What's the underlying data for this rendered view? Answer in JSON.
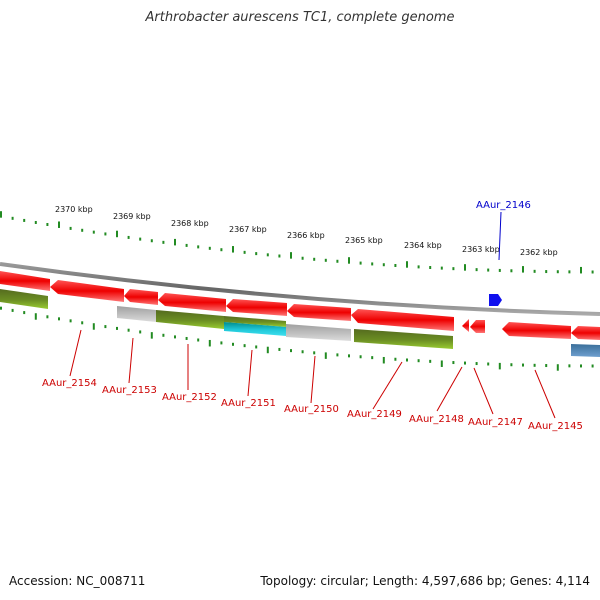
{
  "title": "Arthrobacter aurescens TC1, complete genome",
  "footer": {
    "accession": "Accession: NC_008711",
    "summary": "Topology: circular; Length: 4,597,686 bp; Genes: 4,114"
  },
  "colors": {
    "backbone": "#888888",
    "tick": "#228B22",
    "label_red": "#cc0000",
    "label_blue": "#0000cc",
    "red": "#ff1a1a",
    "green": "#6b8e23",
    "cyan": "#20c8d8",
    "grey": "#bdbdbd",
    "blue": "#1010ee",
    "steel": "#4682b4"
  },
  "scale_labels": [
    "2370 kbp",
    "2369 kbp",
    "2368 kbp",
    "2367 kbp",
    "2366 kbp",
    "2365 kbp",
    "2364 kbp",
    "2363 kbp",
    "2362 kbp"
  ],
  "gene_labels": [
    {
      "id": "AAur_2154",
      "color": "red"
    },
    {
      "id": "AAur_2153",
      "color": "red"
    },
    {
      "id": "AAur_2152",
      "color": "red"
    },
    {
      "id": "AAur_2151",
      "color": "red"
    },
    {
      "id": "AAur_2150",
      "color": "red"
    },
    {
      "id": "AAur_2149",
      "color": "red"
    },
    {
      "id": "AAur_2148",
      "color": "red"
    },
    {
      "id": "AAur_2147",
      "color": "red"
    },
    {
      "id": "AAur_2146",
      "color": "blue"
    },
    {
      "id": "AAur_2145",
      "color": "red"
    }
  ]
}
